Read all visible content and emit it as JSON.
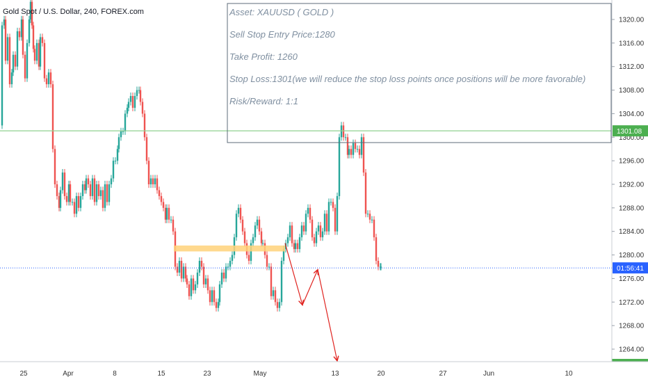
{
  "symbol_title": "Gold Spot / U.S. Dollar, 240, FOREX.com",
  "annotation": {
    "lines": [
      "Asset: XAUUSD ( GOLD )",
      "Sell Stop Entry Price:1280",
      "Take Profit: 1260",
      "Stop Loss:1301(we will reduce the stop loss points once positions will be more favorable)",
      "Risk/Reward: 1:1"
    ]
  },
  "price_tags": {
    "level": "1301.08",
    "timer": "01:56:41"
  },
  "colors": {
    "bull": "#26a69a",
    "bear": "#ef5350",
    "level_line": "#8fd18f",
    "current_line": "#2962ff",
    "timer_bg": "#2962ff",
    "level_bg": "#4caf50",
    "zone": "#ffd27a",
    "arrows": "#e0231f",
    "annotation_border": "#5c6b7a"
  },
  "chart_data": {
    "type": "candlestick",
    "title": "Gold Spot / U.S. Dollar, 240, FOREX.com",
    "ylim": [
      1262,
      1322
    ],
    "y_ticks": [
      1264,
      1268,
      1272,
      1276,
      1280,
      1284,
      1288,
      1292,
      1296,
      1300,
      1304,
      1308,
      1312,
      1316,
      1320
    ],
    "y_tick_labels": [
      "1264.00",
      "1268.00",
      "1272.00",
      "1276.00",
      "1280.00",
      "1284.00",
      "1288.00",
      "1292.00",
      "1296.00",
      "1300.00",
      "1304.00",
      "1308.00",
      "1312.00",
      "1316.00",
      "1320.00"
    ],
    "x_tick_labels": [
      "25",
      "Apr",
      "8",
      "15",
      "23",
      "May",
      "13",
      "20",
      "27",
      "Jun",
      "10"
    ],
    "close_path": [
      [
        0,
        1302
      ],
      [
        3,
        1319
      ],
      [
        6,
        1320
      ],
      [
        8,
        1313
      ],
      [
        11,
        1317
      ],
      [
        14,
        1309
      ],
      [
        17,
        1311
      ],
      [
        19,
        1314
      ],
      [
        22,
        1312
      ],
      [
        25,
        1318
      ],
      [
        28,
        1317
      ],
      [
        31,
        1320
      ],
      [
        33,
        1314
      ],
      [
        36,
        1310
      ],
      [
        39,
        1316
      ],
      [
        42,
        1320
      ],
      [
        44,
        1323
      ],
      [
        46,
        1319
      ],
      [
        48,
        1315
      ],
      [
        50,
        1313
      ],
      [
        53,
        1316
      ],
      [
        56,
        1312
      ],
      [
        58,
        1317
      ],
      [
        61,
        1316
      ],
      [
        64,
        1310
      ],
      [
        67,
        1309
      ],
      [
        70,
        1311
      ],
      [
        73,
        1309
      ],
      [
        76,
        1298
      ],
      [
        79,
        1292
      ],
      [
        82,
        1290
      ],
      [
        85,
        1288
      ],
      [
        87,
        1291
      ],
      [
        90,
        1294
      ],
      [
        93,
        1290
      ],
      [
        96,
        1289
      ],
      [
        99,
        1292
      ],
      [
        101,
        1289
      ],
      [
        104,
        1289
      ],
      [
        107,
        1287
      ],
      [
        110,
        1290
      ],
      [
        113,
        1288
      ],
      [
        116,
        1290
      ],
      [
        119,
        1292
      ],
      [
        122,
        1291
      ],
      [
        124,
        1293
      ],
      [
        127,
        1292
      ],
      [
        130,
        1290
      ],
      [
        133,
        1293
      ],
      [
        136,
        1289
      ],
      [
        139,
        1292
      ],
      [
        142,
        1290
      ],
      [
        145,
        1291
      ],
      [
        148,
        1288
      ],
      [
        151,
        1292
      ],
      [
        154,
        1289
      ],
      [
        157,
        1292
      ],
      [
        160,
        1293
      ],
      [
        163,
        1296
      ],
      [
        166,
        1296
      ],
      [
        169,
        1298
      ],
      [
        171,
        1300
      ],
      [
        174,
        1301
      ],
      [
        177,
        1301
      ],
      [
        180,
        1304
      ],
      [
        183,
        1305
      ],
      [
        185,
        1306
      ],
      [
        188,
        1307
      ],
      [
        191,
        1305
      ],
      [
        194,
        1307
      ],
      [
        197,
        1308
      ],
      [
        200,
        1308
      ],
      [
        202,
        1306
      ],
      [
        205,
        1304
      ],
      [
        208,
        1300
      ],
      [
        211,
        1296
      ],
      [
        214,
        1292
      ],
      [
        217,
        1293
      ],
      [
        220,
        1292
      ],
      [
        223,
        1293
      ],
      [
        226,
        1291
      ],
      [
        229,
        1290
      ],
      [
        232,
        1289
      ],
      [
        235,
        1288
      ],
      [
        238,
        1286
      ],
      [
        240,
        1288
      ],
      [
        243,
        1286
      ],
      [
        246,
        1286
      ],
      [
        249,
        1284
      ],
      [
        252,
        1278
      ],
      [
        255,
        1277
      ],
      [
        258,
        1279
      ],
      [
        261,
        1276
      ],
      [
        264,
        1278
      ],
      [
        267,
        1276
      ],
      [
        269,
        1275
      ],
      [
        272,
        1273
      ],
      [
        275,
        1276
      ],
      [
        278,
        1274
      ],
      [
        281,
        1275
      ],
      [
        284,
        1277
      ],
      [
        287,
        1279
      ],
      [
        290,
        1278
      ],
      [
        293,
        1275
      ],
      [
        296,
        1276
      ],
      [
        299,
        1274
      ],
      [
        302,
        1272
      ],
      [
        305,
        1274
      ],
      [
        308,
        1272
      ],
      [
        311,
        1271
      ],
      [
        314,
        1272
      ],
      [
        316,
        1275
      ],
      [
        319,
        1277
      ],
      [
        322,
        1276
      ],
      [
        325,
        1278
      ],
      [
        328,
        1278
      ],
      [
        331,
        1279
      ],
      [
        334,
        1280
      ],
      [
        337,
        1283
      ],
      [
        340,
        1287
      ],
      [
        343,
        1288
      ],
      [
        346,
        1286
      ],
      [
        349,
        1284
      ],
      [
        352,
        1282
      ],
      [
        355,
        1280
      ],
      [
        358,
        1279
      ],
      [
        361,
        1282
      ],
      [
        364,
        1283
      ],
      [
        367,
        1285
      ],
      [
        370,
        1286
      ],
      [
        373,
        1284
      ],
      [
        376,
        1282
      ],
      [
        378,
        1282
      ],
      [
        381,
        1280
      ],
      [
        384,
        1278
      ],
      [
        387,
        1278
      ],
      [
        390,
        1273
      ],
      [
        393,
        1274
      ],
      [
        396,
        1272
      ],
      [
        399,
        1271
      ],
      [
        402,
        1272
      ],
      [
        405,
        1279
      ],
      [
        408,
        1281
      ],
      [
        411,
        1282
      ],
      [
        414,
        1283
      ],
      [
        417,
        1285
      ],
      [
        420,
        1282
      ],
      [
        423,
        1281
      ],
      [
        425,
        1282
      ],
      [
        428,
        1281
      ],
      [
        431,
        1283
      ],
      [
        434,
        1285
      ],
      [
        437,
        1284
      ],
      [
        440,
        1287
      ],
      [
        443,
        1288
      ],
      [
        446,
        1286
      ],
      [
        449,
        1283
      ],
      [
        452,
        1282
      ],
      [
        455,
        1284
      ],
      [
        458,
        1285
      ],
      [
        461,
        1283
      ],
      [
        464,
        1284
      ],
      [
        467,
        1287
      ],
      [
        470,
        1284
      ],
      [
        473,
        1289
      ],
      [
        476,
        1289
      ],
      [
        479,
        1288
      ],
      [
        482,
        1284
      ],
      [
        485,
        1290
      ],
      [
        488,
        1300
      ],
      [
        491,
        1302
      ],
      [
        494,
        1300
      ],
      [
        497,
        1300
      ],
      [
        500,
        1297
      ],
      [
        502,
        1298
      ],
      [
        505,
        1297
      ],
      [
        508,
        1299
      ],
      [
        511,
        1298
      ],
      [
        514,
        1298
      ],
      [
        517,
        1297
      ],
      [
        520,
        1300
      ],
      [
        523,
        1294
      ],
      [
        526,
        1287
      ],
      [
        529,
        1287
      ],
      [
        532,
        1286
      ],
      [
        535,
        1286
      ],
      [
        538,
        1283
      ],
      [
        541,
        1279
      ],
      [
        544,
        1278
      ],
      [
        547,
        1278
      ],
      [
        548,
        1278
      ]
    ],
    "horizontal_levels": [
      {
        "price": 1301.08,
        "label": "1301.08"
      },
      {
        "price": 1277.8,
        "label": "01:56:41"
      }
    ],
    "zone": {
      "x_from_index": 250,
      "x_to_index": 410,
      "price_low": 1280.6,
      "price_high": 1281.6
    },
    "arrows": [
      {
        "from": [
          410,
          1282
        ],
        "to": [
          435,
          1271.5
        ]
      },
      {
        "from": [
          435,
          1271.5
        ],
        "to": [
          457,
          1277.5
        ]
      },
      {
        "from": [
          457,
          1277.5
        ],
        "to": [
          485,
          1262
        ]
      }
    ]
  }
}
